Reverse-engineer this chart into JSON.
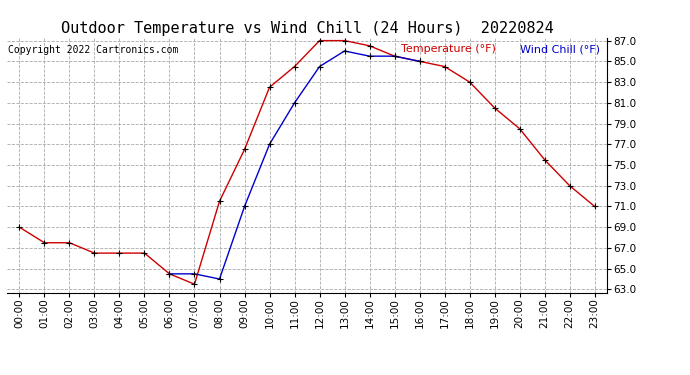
{
  "title": "Outdoor Temperature vs Wind Chill (24 Hours)  20220824",
  "copyright": "Copyright 2022 Cartronics.com",
  "legend_wind_chill": "Wind Chill (°F)",
  "legend_temperature": "Temperature (°F)",
  "hours": [
    0,
    1,
    2,
    3,
    4,
    5,
    6,
    7,
    8,
    9,
    10,
    11,
    12,
    13,
    14,
    15,
    16,
    17,
    18,
    19,
    20,
    21,
    22,
    23
  ],
  "temperature": [
    69.0,
    67.5,
    67.5,
    66.5,
    66.5,
    66.5,
    64.5,
    63.5,
    71.5,
    76.5,
    82.5,
    84.5,
    87.0,
    87.0,
    86.5,
    85.5,
    85.0,
    84.5,
    83.0,
    80.5,
    78.5,
    75.5,
    73.0,
    71.0
  ],
  "wind_chill": [
    null,
    null,
    null,
    null,
    null,
    null,
    64.5,
    64.5,
    64.0,
    71.0,
    77.0,
    81.0,
    84.5,
    86.0,
    85.5,
    85.5,
    85.0,
    null,
    null,
    null,
    null,
    null,
    null,
    null
  ],
  "temp_color": "#cc0000",
  "wind_chill_color": "#0000cc",
  "marker": "+",
  "marker_color": "#000000",
  "ylim_min": 63.0,
  "ylim_max": 87.0,
  "ytick_step": 2.0,
  "background_color": "#ffffff",
  "grid_color": "#aaaaaa",
  "title_fontsize": 11,
  "axis_fontsize": 7.5,
  "legend_fontsize": 8,
  "copyright_fontsize": 7
}
